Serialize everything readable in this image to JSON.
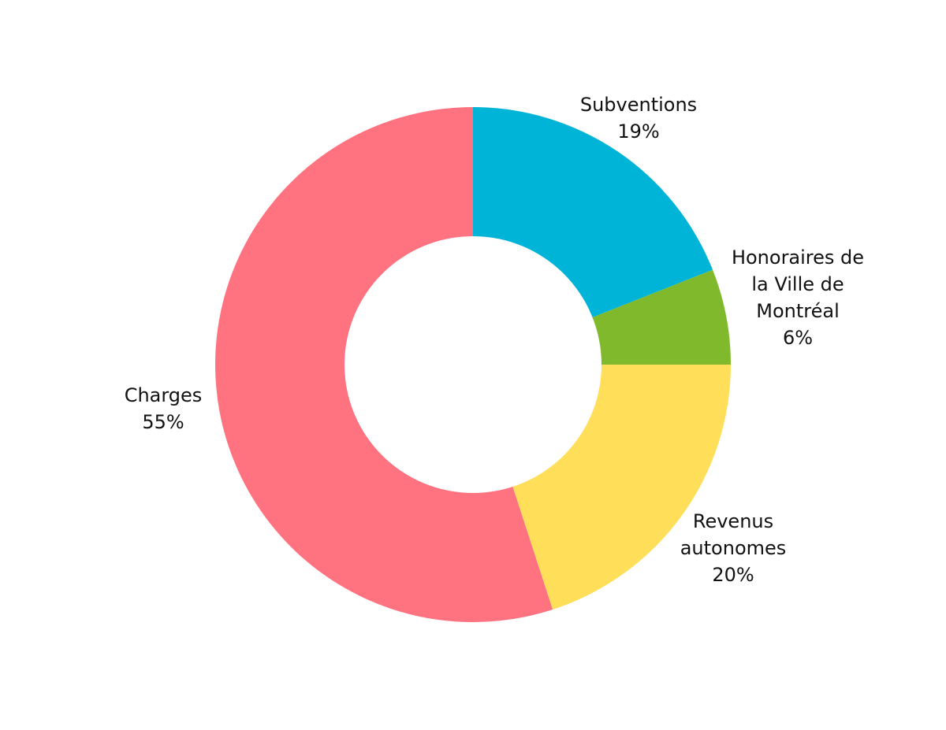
{
  "chart_data": {
    "type": "pie",
    "donut": true,
    "title": "",
    "start_angle_deg": 0,
    "direction": "clockwise",
    "slices": [
      {
        "label_lines": [
          "Subventions"
        ],
        "pct_label": "19%",
        "value": 19,
        "color": "#00B4D8"
      },
      {
        "label_lines": [
          "Honoraires de",
          "la Ville de",
          "Montréal"
        ],
        "pct_label": "6%",
        "value": 6,
        "color": "#80B92C"
      },
      {
        "label_lines": [
          "Revenus",
          "autonomes"
        ],
        "pct_label": "20%",
        "value": 20,
        "color": "#FFDE59"
      },
      {
        "label_lines": [
          "Charges"
        ],
        "pct_label": "55%",
        "value": 55,
        "color": "#FF7280"
      }
    ]
  }
}
